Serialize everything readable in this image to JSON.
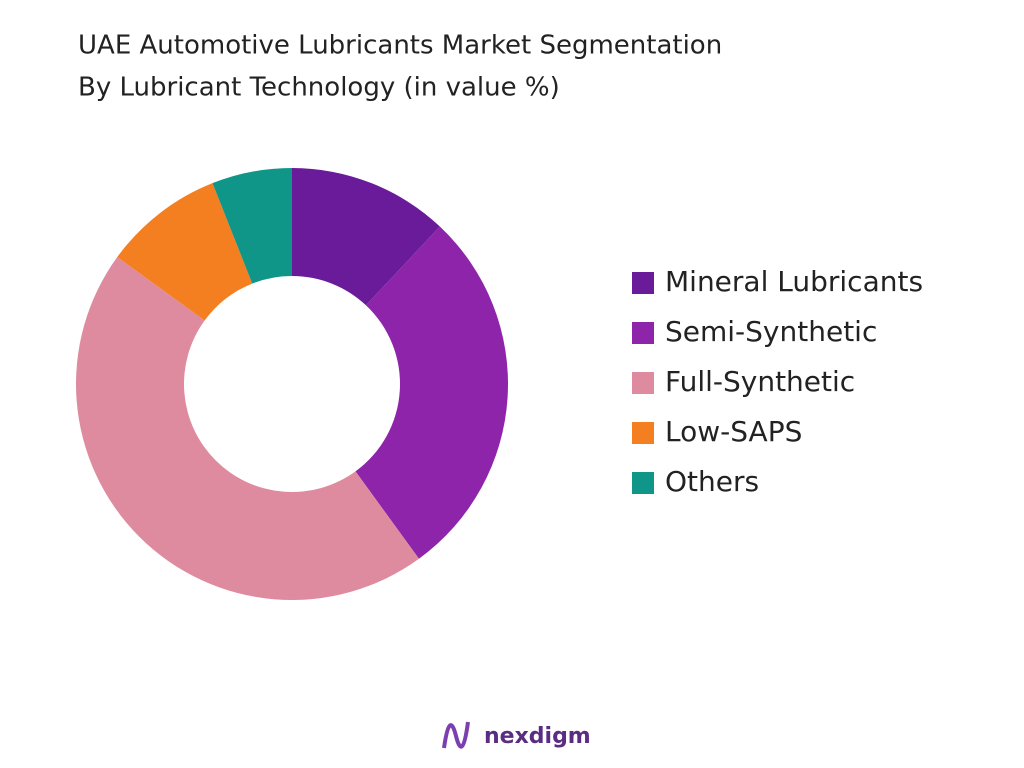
{
  "chart_data": {
    "type": "donut",
    "title": "UAE Automotive Lubricants Market Segmentation",
    "subtitle": "By Lubricant Technology (in value %)",
    "categories": [
      "Mineral Lubricants",
      "Semi-Synthetic",
      "Full-Synthetic",
      "Low-SAPS",
      "Others"
    ],
    "values": [
      12,
      28,
      45,
      9,
      6
    ],
    "colors": [
      "#6a1b9a",
      "#8e24aa",
      "#de8ba0",
      "#f47f20",
      "#0f9688"
    ],
    "legend": "right"
  },
  "footer": {
    "brand": "nexdigm"
  }
}
